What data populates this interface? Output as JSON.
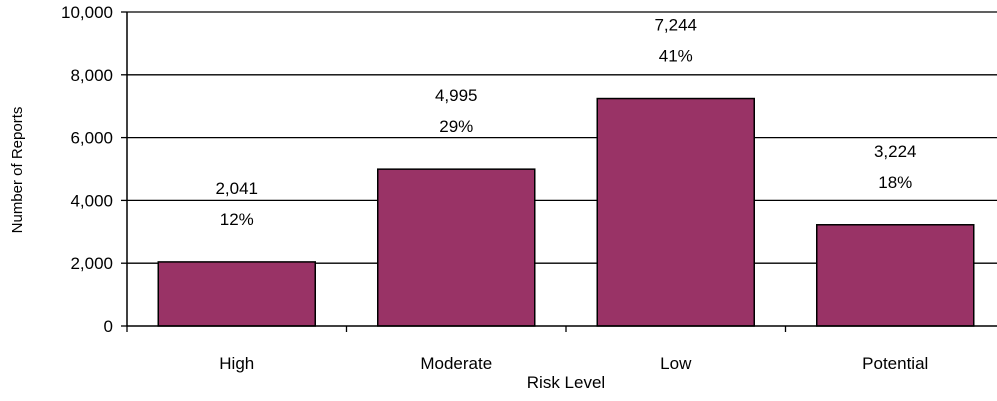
{
  "chart_data": {
    "type": "bar",
    "title": "",
    "xlabel": "Risk Level",
    "ylabel": "Number of Reports",
    "categories": [
      "High",
      "Moderate",
      "Low",
      "Potential"
    ],
    "values": [
      2041,
      4995,
      7244,
      3224
    ],
    "value_labels": [
      "2,041",
      "4,995",
      "7,244",
      "3,224"
    ],
    "percent_labels": [
      "12%",
      "29%",
      "41%",
      "18%"
    ],
    "ylim": [
      0,
      10000
    ],
    "yticks": [
      0,
      2000,
      4000,
      6000,
      8000,
      10000
    ],
    "ytick_labels": [
      "0",
      "2,000",
      "4,000",
      "6,000",
      "8,000",
      "10,000"
    ],
    "grid": true,
    "legend": "none",
    "colors": {
      "bar_fill": "#993366",
      "bar_stroke": "#000000",
      "grid": "#000000"
    }
  }
}
